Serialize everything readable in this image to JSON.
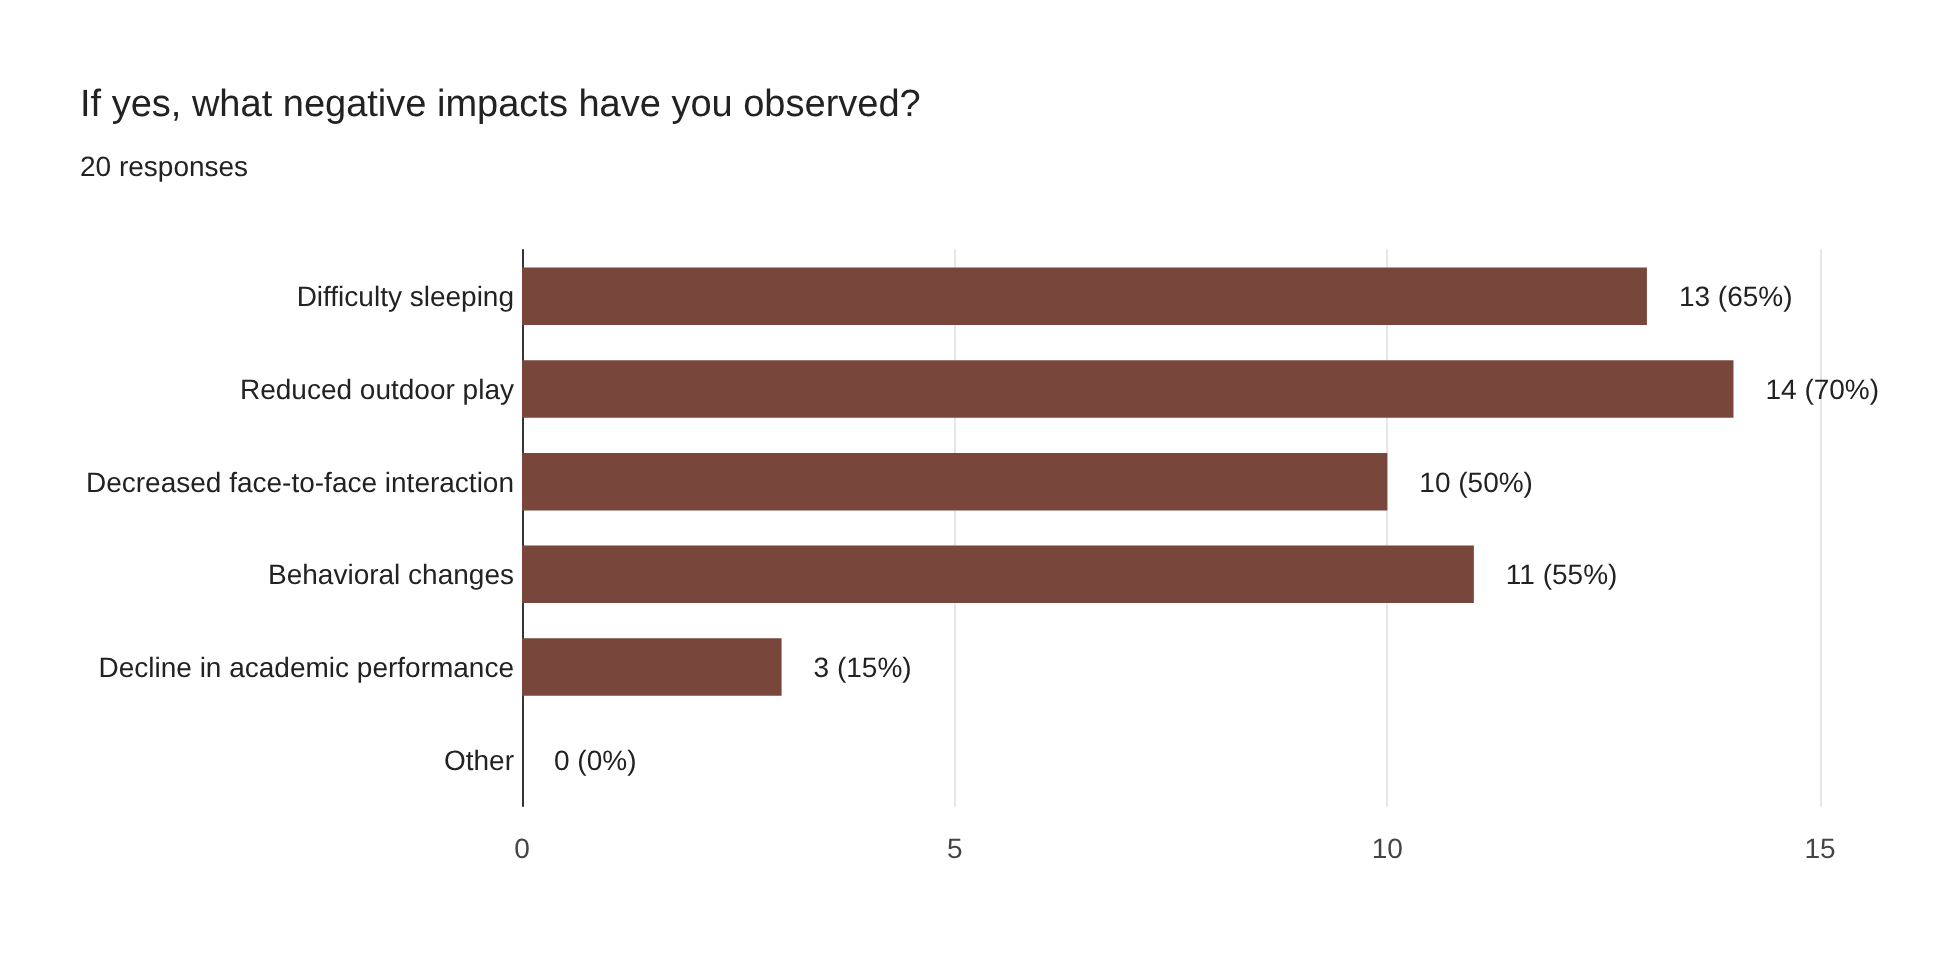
{
  "chart_data": {
    "type": "bar",
    "orientation": "horizontal",
    "title": "If yes, what negative impacts have you observed?",
    "subtitle": "20 responses",
    "categories": [
      "Difficulty sleeping",
      "Reduced outdoor play",
      "Decreased face-to-face interaction",
      "Behavioral changes",
      "Decline in academic performance",
      "Other"
    ],
    "values": [
      13,
      14,
      10,
      11,
      3,
      0
    ],
    "value_labels": [
      "13 (65%)",
      "14 (70%)",
      "10 (50%)",
      "11 (55%)",
      "3 (15%)",
      "0 (0%)"
    ],
    "color": "#79463c",
    "xlim": [
      0,
      15
    ],
    "xticks": [
      0,
      5,
      10,
      15
    ],
    "grid": "x"
  }
}
